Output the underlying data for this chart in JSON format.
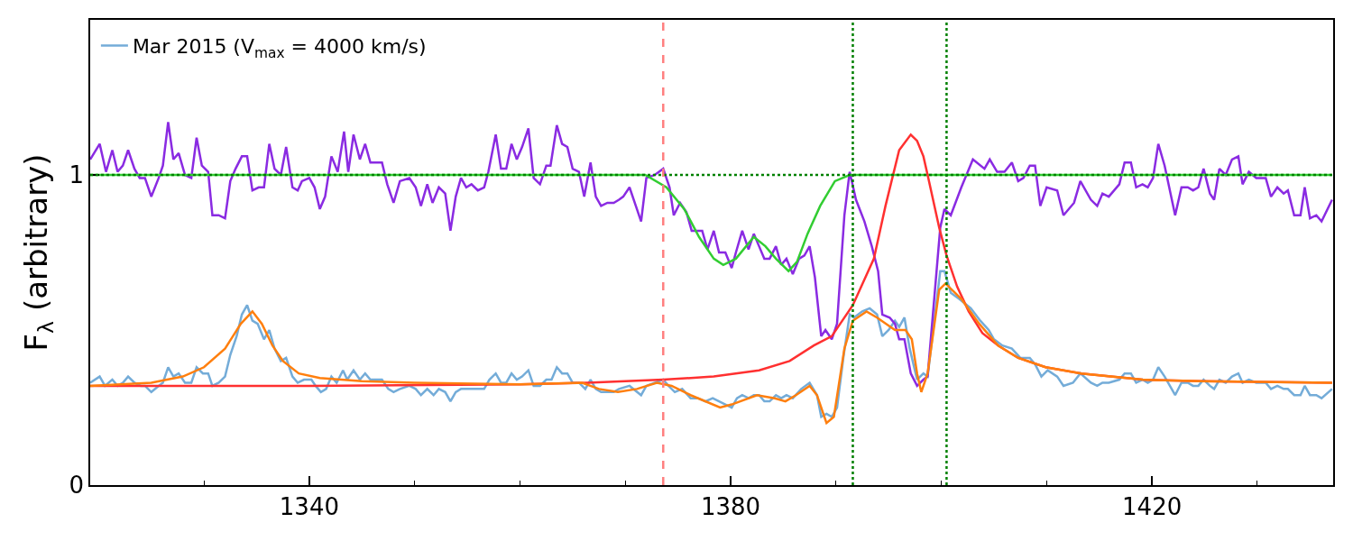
{
  "chart_data": {
    "type": "line",
    "ylabel": "F$_{λ}$ (arbitrary)",
    "xlim": [
      1319.2,
      1437.2
    ],
    "ylim": [
      0,
      1.5
    ],
    "xticks": [
      {
        "value": 1330,
        "label": null
      },
      1340,
      {
        "value": 1350,
        "label": null
      },
      {
        "value": 1360,
        "label": null
      },
      {
        "value": 1370,
        "label": null
      },
      1380,
      {
        "value": 1390,
        "label": null
      },
      {
        "value": 1400,
        "label": null
      },
      {
        "value": 1410,
        "label": null
      },
      1420,
      {
        "value": 1430,
        "label": null
      }
    ],
    "yticks": [
      0,
      1
    ],
    "legend": "top left",
    "line_style": "solid",
    "ref_lines": [
      {
        "axis": "y",
        "value": 1,
        "color": "#008000",
        "line_style": "dotted"
      },
      {
        "axis": "x",
        "value": 1373.6,
        "color": "#ff7f7f",
        "line_style": "dashed"
      },
      {
        "axis": "x",
        "value": 1391.6,
        "color": "#008000",
        "line_style": "dotted"
      },
      {
        "axis": "x",
        "value": 1400.5,
        "color": "#008000",
        "line_style": "dotted"
      }
    ],
    "series": [
      {
        "name": "Mar 2015 (V$_{max}$ = 4000 km/s)",
        "color": "#74acd8",
        "x": [
          1319.2,
          1320.1,
          1320.6,
          1321.3,
          1321.8,
          1322.3,
          1322.8,
          1323.4,
          1324.0,
          1324.4,
          1325.0,
          1325.7,
          1326.1,
          1326.6,
          1327.1,
          1327.6,
          1328.2,
          1328.8,
          1329.3,
          1329.9,
          1330.4,
          1330.8,
          1331.4,
          1332.0,
          1332.5,
          1333.1,
          1333.6,
          1334.1,
          1334.6,
          1335.1,
          1335.7,
          1336.2,
          1336.7,
          1337.3,
          1337.8,
          1338.4,
          1338.9,
          1339.5,
          1340.2,
          1340.6,
          1341.1,
          1341.6,
          1342.1,
          1342.6,
          1343.2,
          1343.6,
          1344.2,
          1344.8,
          1345.3,
          1345.8,
          1346.9,
          1347.5,
          1348.0,
          1348.6,
          1349.5,
          1350.1,
          1350.6,
          1351.2,
          1351.8,
          1352.3,
          1352.9,
          1353.4,
          1353.9,
          1354.4,
          1355.0,
          1355.4,
          1356.0,
          1356.6,
          1357.1,
          1357.7,
          1358.2,
          1358.7,
          1359.2,
          1359.7,
          1360.2,
          1360.8,
          1361.3,
          1361.9,
          1362.5,
          1363.0,
          1363.5,
          1364.0,
          1364.5,
          1365.0,
          1365.6,
          1366.2,
          1366.7,
          1367.2,
          1367.7,
          1368.3,
          1368.9,
          1369.4,
          1370.4,
          1371.5,
          1372.0,
          1372.8,
          1373.6,
          1374.1,
          1374.7,
          1375.4,
          1376.2,
          1376.9,
          1377.6,
          1378.3,
          1378.9,
          1379.5,
          1380.1,
          1380.6,
          1381.1,
          1381.7,
          1382.2,
          1382.7,
          1383.2,
          1383.7,
          1384.3,
          1384.8,
          1385.3,
          1385.9,
          1386.7,
          1387.5,
          1388.2,
          1388.6,
          1389.1,
          1389.6,
          1390.1,
          1390.7,
          1391.3,
          1391.7,
          1392.5,
          1393.2,
          1393.9,
          1394.4,
          1395.0,
          1395.6,
          1396.0,
          1396.5,
          1397.0,
          1397.7,
          1398.3,
          1398.7,
          1399.9,
          1400.3,
          1400.9,
          1401.7,
          1402.8,
          1403.7,
          1404.5,
          1405.0,
          1405.8,
          1406.7,
          1407.5,
          1408.4,
          1408.9,
          1409.5,
          1410.1,
          1411.0,
          1411.6,
          1412.5,
          1413.2,
          1414.2,
          1414.8,
          1415.3,
          1415.9,
          1416.9,
          1417.4,
          1418.0,
          1418.5,
          1419.1,
          1419.6,
          1420.1,
          1420.6,
          1421.2,
          1422.2,
          1422.8,
          1423.4,
          1423.9,
          1424.4,
          1424.9,
          1425.5,
          1425.9,
          1426.4,
          1427.0,
          1427.6,
          1428.2,
          1428.6,
          1429.2,
          1429.9,
          1430.8,
          1431.3,
          1431.9,
          1432.5,
          1432.9,
          1433.5,
          1434.1,
          1434.5,
          1435.0,
          1435.6,
          1436.1,
          1437.1
        ],
        "values": [
          0.33,
          0.35,
          0.32,
          0.34,
          0.32,
          0.33,
          0.35,
          0.33,
          0.32,
          0.32,
          0.3,
          0.32,
          0.33,
          0.38,
          0.35,
          0.36,
          0.33,
          0.33,
          0.38,
          0.36,
          0.36,
          0.32,
          0.33,
          0.35,
          0.42,
          0.48,
          0.55,
          0.58,
          0.53,
          0.52,
          0.47,
          0.5,
          0.44,
          0.4,
          0.41,
          0.35,
          0.33,
          0.34,
          0.34,
          0.32,
          0.3,
          0.31,
          0.35,
          0.33,
          0.37,
          0.34,
          0.37,
          0.34,
          0.36,
          0.34,
          0.34,
          0.31,
          0.3,
          0.31,
          0.32,
          0.31,
          0.29,
          0.31,
          0.29,
          0.31,
          0.3,
          0.27,
          0.3,
          0.31,
          0.31,
          0.31,
          0.31,
          0.31,
          0.34,
          0.36,
          0.33,
          0.33,
          0.36,
          0.34,
          0.35,
          0.37,
          0.32,
          0.32,
          0.34,
          0.34,
          0.38,
          0.36,
          0.36,
          0.33,
          0.33,
          0.31,
          0.34,
          0.31,
          0.3,
          0.3,
          0.3,
          0.31,
          0.32,
          0.29,
          0.32,
          0.33,
          0.34,
          0.32,
          0.3,
          0.31,
          0.28,
          0.28,
          0.27,
          0.28,
          0.27,
          0.26,
          0.25,
          0.28,
          0.29,
          0.28,
          0.29,
          0.29,
          0.27,
          0.27,
          0.29,
          0.28,
          0.29,
          0.28,
          0.31,
          0.33,
          0.29,
          0.22,
          0.23,
          0.22,
          0.25,
          0.41,
          0.55,
          0.54,
          0.56,
          0.57,
          0.55,
          0.48,
          0.5,
          0.53,
          0.51,
          0.54,
          0.44,
          0.34,
          0.36,
          0.35,
          0.69,
          0.69,
          0.62,
          0.6,
          0.57,
          0.53,
          0.5,
          0.47,
          0.45,
          0.44,
          0.41,
          0.41,
          0.39,
          0.35,
          0.37,
          0.35,
          0.32,
          0.33,
          0.36,
          0.33,
          0.32,
          0.33,
          0.33,
          0.34,
          0.36,
          0.36,
          0.33,
          0.34,
          0.33,
          0.34,
          0.38,
          0.35,
          0.29,
          0.33,
          0.33,
          0.32,
          0.32,
          0.34,
          0.32,
          0.31,
          0.34,
          0.33,
          0.35,
          0.36,
          0.33,
          0.34,
          0.33,
          0.33,
          0.31,
          0.32,
          0.31,
          0.31,
          0.29,
          0.29,
          0.32,
          0.29,
          0.29,
          0.28,
          0.31
        ]
      },
      {
        "color": "#8a2be2",
        "x": [
          1319.2,
          1320.1,
          1320.7,
          1321.3,
          1321.8,
          1322.3,
          1322.8,
          1323.4,
          1323.9,
          1324.4,
          1325.0,
          1325.7,
          1326.1,
          1326.6,
          1327.1,
          1327.6,
          1328.2,
          1328.8,
          1329.3,
          1329.8,
          1330.4,
          1330.8,
          1331.4,
          1332.0,
          1332.5,
          1333.0,
          1333.6,
          1334.1,
          1334.6,
          1335.2,
          1335.7,
          1336.2,
          1336.7,
          1337.3,
          1337.8,
          1338.4,
          1338.9,
          1339.3,
          1340.0,
          1340.5,
          1341.0,
          1341.5,
          1342.1,
          1342.7,
          1343.3,
          1343.7,
          1344.2,
          1344.8,
          1345.3,
          1345.8,
          1346.9,
          1347.4,
          1348.0,
          1348.6,
          1349.5,
          1350.1,
          1350.6,
          1351.2,
          1351.7,
          1352.3,
          1352.9,
          1353.4,
          1353.9,
          1354.4,
          1354.9,
          1355.4,
          1356.0,
          1356.6,
          1357.0,
          1357.7,
          1358.2,
          1358.7,
          1359.2,
          1359.7,
          1360.2,
          1360.8,
          1361.3,
          1361.9,
          1362.5,
          1362.9,
          1363.5,
          1364.0,
          1364.5,
          1365.0,
          1365.6,
          1366.1,
          1366.7,
          1367.2,
          1367.7,
          1368.3,
          1368.9,
          1369.4,
          1369.8,
          1370.4,
          1371.0,
          1371.5,
          1372.0,
          1372.8,
          1373.6,
          1374.2,
          1374.6,
          1375.2,
          1375.8,
          1376.3,
          1376.7,
          1377.3,
          1377.8,
          1378.4,
          1378.9,
          1379.5,
          1380.1,
          1380.5,
          1381.1,
          1381.7,
          1382.2,
          1382.7,
          1383.2,
          1383.7,
          1384.3,
          1384.8,
          1385.3,
          1385.9,
          1386.5,
          1387.0,
          1387.5,
          1388.0,
          1388.6,
          1389.0,
          1389.6,
          1390.1,
          1390.8,
          1391.3,
          1391.9,
          1392.7,
          1393.4,
          1394.0,
          1394.4,
          1395.1,
          1395.6,
          1396.0,
          1396.5,
          1397.1,
          1397.7,
          1398.3,
          1398.7,
          1399.9,
          1400.3,
          1400.9,
          1401.9,
          1403.0,
          1404.1,
          1404.6,
          1405.3,
          1406.0,
          1406.7,
          1407.3,
          1407.8,
          1408.4,
          1408.9,
          1409.4,
          1410.0,
          1411.0,
          1411.6,
          1412.6,
          1413.2,
          1414.2,
          1414.8,
          1415.3,
          1415.9,
          1416.9,
          1417.4,
          1418.0,
          1418.5,
          1419.1,
          1419.6,
          1420.1,
          1420.6,
          1421.2,
          1422.2,
          1422.8,
          1423.4,
          1423.9,
          1424.4,
          1424.9,
          1425.5,
          1425.9,
          1426.4,
          1427.0,
          1427.6,
          1428.2,
          1428.6,
          1429.2,
          1429.9,
          1430.8,
          1431.3,
          1431.9,
          1432.5,
          1432.9,
          1433.5,
          1434.1,
          1434.5,
          1435.0,
          1435.6,
          1436.1,
          1437.1
        ],
        "values": [
          1.05,
          1.1,
          1.01,
          1.08,
          1.01,
          1.03,
          1.08,
          1.02,
          0.99,
          0.99,
          0.93,
          0.99,
          1.03,
          1.17,
          1.05,
          1.07,
          1.0,
          0.99,
          1.12,
          1.03,
          1.01,
          0.87,
          0.87,
          0.86,
          0.98,
          1.02,
          1.06,
          1.06,
          0.95,
          0.96,
          0.96,
          1.1,
          1.02,
          1.0,
          1.09,
          0.96,
          0.95,
          0.98,
          0.99,
          0.96,
          0.89,
          0.93,
          1.06,
          1.01,
          1.14,
          1.01,
          1.13,
          1.05,
          1.1,
          1.04,
          1.04,
          0.97,
          0.91,
          0.98,
          0.99,
          0.96,
          0.9,
          0.97,
          0.91,
          0.96,
          0.94,
          0.82,
          0.93,
          0.99,
          0.96,
          0.97,
          0.95,
          0.96,
          1.01,
          1.13,
          1.02,
          1.02,
          1.1,
          1.05,
          1.09,
          1.15,
          0.99,
          0.97,
          1.03,
          1.03,
          1.16,
          1.1,
          1.09,
          1.02,
          1.01,
          0.93,
          1.04,
          0.93,
          0.9,
          0.91,
          0.91,
          0.92,
          0.93,
          0.96,
          0.9,
          0.85,
          0.99,
          1.0,
          1.02,
          0.96,
          0.87,
          0.91,
          0.88,
          0.82,
          0.82,
          0.82,
          0.76,
          0.82,
          0.75,
          0.75,
          0.7,
          0.75,
          0.82,
          0.76,
          0.81,
          0.77,
          0.73,
          0.73,
          0.77,
          0.71,
          0.73,
          0.68,
          0.73,
          0.74,
          0.77,
          0.67,
          0.48,
          0.5,
          0.47,
          0.52,
          0.87,
          1.01,
          0.92,
          0.85,
          0.77,
          0.69,
          0.55,
          0.54,
          0.52,
          0.47,
          0.47,
          0.36,
          0.32,
          0.34,
          0.35,
          0.83,
          0.89,
          0.87,
          0.96,
          1.05,
          1.02,
          1.05,
          1.01,
          1.01,
          1.04,
          0.98,
          0.99,
          1.03,
          1.03,
          0.9,
          0.96,
          0.95,
          0.87,
          0.91,
          0.98,
          0.92,
          0.9,
          0.94,
          0.93,
          0.97,
          1.04,
          1.04,
          0.96,
          0.97,
          0.96,
          0.99,
          1.1,
          1.03,
          0.87,
          0.96,
          0.96,
          0.95,
          0.96,
          1.02,
          0.94,
          0.92,
          1.02,
          1.0,
          1.05,
          1.06,
          0.97,
          1.01,
          0.99,
          0.99,
          0.93,
          0.96,
          0.94,
          0.95,
          0.87,
          0.87,
          0.96,
          0.86,
          0.87,
          0.85,
          0.92
        ]
      },
      {
        "color": "#32cd32",
        "x": [
          1319.2,
          1370.0,
          1371.9,
          1373.9,
          1375.6,
          1377.0,
          1378.4,
          1379.3,
          1380.5,
          1382.2,
          1383.3,
          1384.3,
          1385.5,
          1386.3,
          1387.3,
          1388.5,
          1389.9,
          1391.3,
          1437.1
        ],
        "values": [
          1.0,
          1.0,
          1.0,
          0.96,
          0.89,
          0.8,
          0.73,
          0.71,
          0.73,
          0.8,
          0.77,
          0.73,
          0.69,
          0.72,
          0.81,
          0.9,
          0.98,
          1.0,
          1.0
        ]
      },
      {
        "color": "#ff3030",
        "x": [
          1319.2,
          1340.0,
          1360.0,
          1366.4,
          1373.6,
          1378.4,
          1382.7,
          1385.6,
          1387.9,
          1389.6,
          1391.6,
          1393.6,
          1394.7,
          1396.0,
          1397.1,
          1397.7,
          1398.3,
          1398.7,
          1399.8,
          1400.5,
          1401.5,
          1402.6,
          1403.9,
          1405.4,
          1407.3,
          1409.9,
          1413.3,
          1419.1,
          1424.7,
          1437.1
        ],
        "values": [
          0.32,
          0.32,
          0.325,
          0.33,
          0.34,
          0.35,
          0.37,
          0.4,
          0.45,
          0.48,
          0.58,
          0.73,
          0.9,
          1.08,
          1.13,
          1.11,
          1.06,
          1.0,
          0.83,
          0.74,
          0.64,
          0.56,
          0.49,
          0.45,
          0.41,
          0.38,
          0.36,
          0.34,
          0.335,
          0.33
        ]
      },
      {
        "color": "#ff7f0e",
        "x": [
          1319.2,
          1325.0,
          1328.0,
          1330.0,
          1332.0,
          1333.5,
          1334.6,
          1335.5,
          1336.5,
          1337.5,
          1339.0,
          1341.0,
          1345.0,
          1350.0,
          1360.0,
          1365.9,
          1367.5,
          1369.3,
          1371.1,
          1373.0,
          1374.4,
          1376.2,
          1379.0,
          1380.1,
          1382.5,
          1384.2,
          1385.2,
          1386.2,
          1387.5,
          1388.2,
          1389.1,
          1389.8,
          1390.8,
          1391.6,
          1392.9,
          1393.9,
          1395.6,
          1396.6,
          1397.2,
          1397.7,
          1398.1,
          1398.7,
          1399.8,
          1400.4,
          1401.9,
          1403.6,
          1405.4,
          1407.3,
          1409.9,
          1413.3,
          1419.1,
          1424.7,
          1437.1
        ],
        "values": [
          0.32,
          0.33,
          0.35,
          0.38,
          0.44,
          0.52,
          0.56,
          0.52,
          0.45,
          0.4,
          0.36,
          0.345,
          0.335,
          0.33,
          0.325,
          0.33,
          0.31,
          0.3,
          0.31,
          0.33,
          0.32,
          0.29,
          0.25,
          0.26,
          0.29,
          0.28,
          0.27,
          0.29,
          0.32,
          0.29,
          0.2,
          0.22,
          0.44,
          0.53,
          0.56,
          0.54,
          0.5,
          0.5,
          0.47,
          0.36,
          0.3,
          0.36,
          0.63,
          0.65,
          0.6,
          0.52,
          0.45,
          0.41,
          0.38,
          0.36,
          0.34,
          0.335,
          0.33
        ]
      }
    ]
  }
}
